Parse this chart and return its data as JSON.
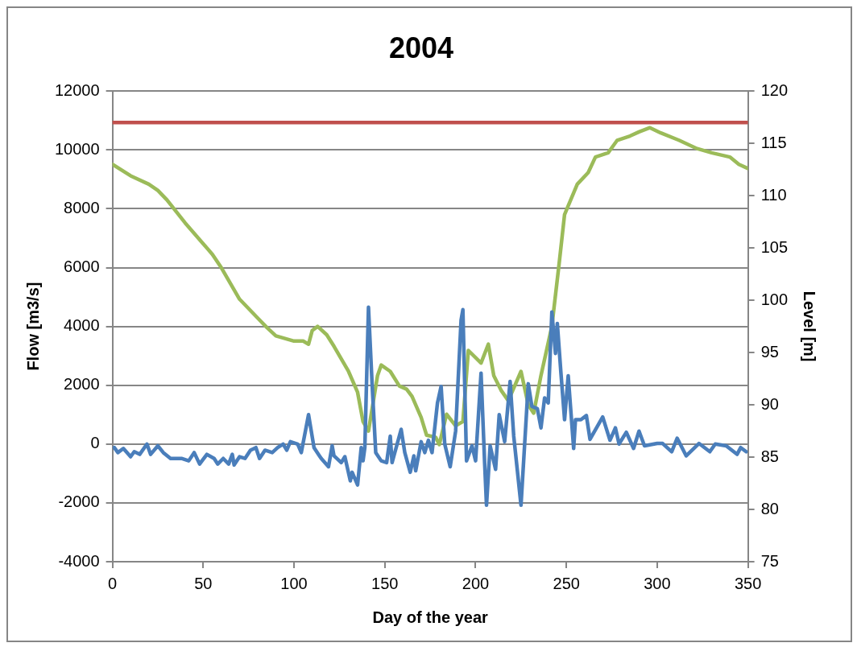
{
  "chart_data": {
    "type": "line",
    "title": "2004",
    "xlabel": "Day of the year",
    "ylabel": "Flow [m3/s]",
    "y2label": "Level [m]",
    "xlim": [
      0,
      350
    ],
    "xticks": [
      0,
      50,
      100,
      150,
      200,
      250,
      300,
      350
    ],
    "ylim": [
      -4000,
      12000
    ],
    "yticks": [
      -4000,
      -2000,
      0,
      2000,
      4000,
      6000,
      8000,
      10000,
      12000
    ],
    "y2lim": [
      75,
      120
    ],
    "y2ticks": [
      75,
      80,
      85,
      90,
      95,
      100,
      105,
      110,
      115,
      120
    ],
    "grid": "y",
    "legend": false,
    "marker": "none",
    "line_style": "solid",
    "series": [
      {
        "color": "#4a7ebb",
        "x": [
          1,
          3,
          6,
          10,
          12,
          15,
          19,
          21,
          25,
          28,
          32,
          35,
          38,
          42,
          45,
          48,
          52,
          56,
          58,
          61,
          64,
          66,
          67,
          70,
          73,
          76,
          79,
          81,
          84,
          88,
          91,
          94,
          96,
          98,
          102,
          104,
          108,
          111,
          114,
          115,
          119,
          121,
          122,
          126,
          128,
          131,
          132,
          135,
          137,
          138,
          139,
          141,
          143,
          145,
          148,
          151,
          153,
          154,
          159,
          161,
          164,
          166,
          167,
          170,
          172,
          174,
          176,
          179,
          181,
          183,
          186,
          189,
          192,
          193,
          195,
          198,
          200,
          203,
          205,
          206,
          208,
          211,
          213,
          216,
          219,
          221,
          225,
          229,
          231,
          234,
          236,
          238,
          240,
          242,
          244,
          245,
          247,
          249,
          251,
          254,
          255,
          258,
          261,
          263,
          270,
          274,
          277,
          279,
          283,
          287,
          290,
          293,
          300,
          303,
          308,
          311,
          316,
          323,
          329,
          332,
          338,
          344,
          346,
          349
        ],
        "values": [
          -120,
          -290,
          -150,
          -430,
          -260,
          -350,
          0,
          -350,
          -60,
          -290,
          -490,
          -490,
          -490,
          -570,
          -290,
          -680,
          -350,
          -490,
          -680,
          -490,
          -680,
          -350,
          -710,
          -430,
          -490,
          -210,
          -120,
          -490,
          -210,
          -290,
          -120,
          0,
          -210,
          80,
          0,
          -290,
          1000,
          -120,
          -400,
          -490,
          -770,
          -60,
          -400,
          -630,
          -430,
          -1250,
          -960,
          -1390,
          -120,
          -570,
          -120,
          4650,
          2040,
          -290,
          -570,
          -630,
          270,
          -630,
          500,
          -290,
          -960,
          -400,
          -910,
          80,
          -290,
          130,
          -290,
          1400,
          1960,
          0,
          -770,
          440,
          4210,
          4570,
          -570,
          -60,
          -570,
          2410,
          -680,
          -2080,
          -60,
          -860,
          1000,
          80,
          2130,
          270,
          -2080,
          2050,
          1280,
          1200,
          550,
          1570,
          1400,
          4490,
          3080,
          4100,
          2410,
          830,
          2320,
          -150,
          830,
          830,
          970,
          160,
          920,
          130,
          550,
          0,
          400,
          -150,
          440,
          -60,
          20,
          20,
          -260,
          200,
          -400,
          20,
          -260,
          0,
          -60,
          -350,
          -120,
          -260
        ]
      },
      {
        "color": "#9bbb59",
        "axis": "y2",
        "x": [
          0,
          10,
          20,
          25,
          30,
          40,
          50,
          55,
          60,
          70,
          80,
          85,
          90,
          100,
          105,
          108,
          110,
          113,
          118,
          122,
          130,
          135,
          138,
          141,
          146,
          148,
          153,
          158,
          162,
          165,
          170,
          173,
          178,
          180,
          184,
          189,
          193,
          196,
          203,
          207,
          210,
          214,
          218,
          225,
          229,
          232,
          236,
          242,
          246,
          249,
          256,
          262,
          266,
          273,
          278,
          285,
          290,
          296,
          302,
          312,
          322,
          330,
          340,
          345,
          350
        ],
        "values": [
          113.0,
          111.9,
          111.1,
          110.5,
          109.6,
          107.4,
          105.4,
          104.4,
          103.1,
          100.1,
          98.3,
          97.4,
          96.6,
          96.1,
          96.1,
          95.8,
          97.1,
          97.5,
          96.7,
          95.6,
          93.2,
          91.2,
          88.4,
          87.5,
          92.8,
          93.8,
          93.2,
          91.8,
          91.5,
          90.8,
          88.8,
          87.1,
          86.9,
          86.2,
          89.1,
          88.0,
          88.4,
          95.2,
          94.0,
          95.8,
          92.8,
          91.4,
          90.4,
          93.2,
          90.0,
          89.2,
          92.8,
          97.5,
          103.5,
          108.2,
          111.1,
          112.2,
          113.7,
          114.1,
          115.3,
          115.7,
          116.1,
          116.5,
          116.0,
          115.3,
          114.5,
          114.1,
          113.7,
          113.0,
          112.6
        ]
      },
      {
        "color": "#c0504d",
        "axis": "y2",
        "x": [
          0,
          350
        ],
        "values": [
          117,
          117
        ]
      }
    ]
  }
}
